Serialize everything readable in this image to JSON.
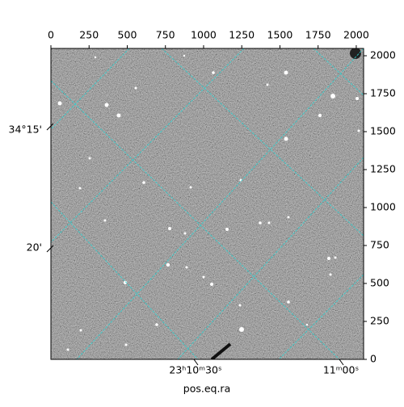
{
  "chart_data": {
    "type": "image",
    "xlabel": "pos.eq.ra",
    "xlim": [
      0,
      2048
    ],
    "xticks": [
      0,
      250,
      500,
      750,
      1000,
      1250,
      1500,
      1750,
      2000
    ],
    "ylim": [
      0,
      2048
    ],
    "yticks": [
      0,
      250,
      500,
      750,
      1000,
      1250,
      1500,
      1750,
      2000
    ],
    "world_dec_labels": [
      "34°15'",
      "20'"
    ],
    "world_ra_labels": [
      "23ʰ10ᵐ30ˢ",
      "11ᵐ00ˢ"
    ]
  }
}
